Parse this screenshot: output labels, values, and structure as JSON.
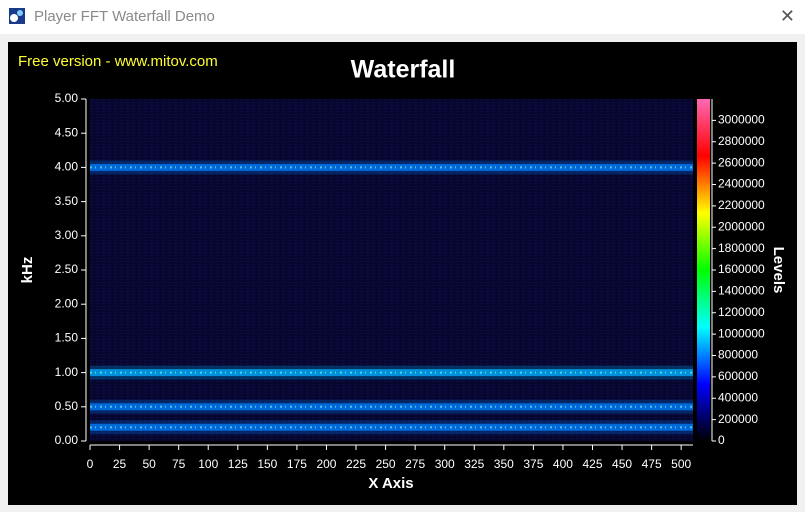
{
  "window": {
    "title": "Player FFT Waterfall Demo"
  },
  "chart_data": {
    "type": "waterfall",
    "title": "Waterfall",
    "watermark": "Free version - www.mitov.com",
    "x_label": "X Axis",
    "y_label": "kHz",
    "z_label": "Levels",
    "xlim": [
      0,
      510
    ],
    "xticks": [
      0,
      25,
      50,
      75,
      100,
      125,
      150,
      175,
      200,
      225,
      250,
      275,
      300,
      325,
      350,
      375,
      400,
      425,
      450,
      475,
      500
    ],
    "ylim": [
      0,
      5
    ],
    "yticks": [
      {
        "value": 0,
        "label": "0.00"
      },
      {
        "value": 0.5,
        "label": "0.50"
      },
      {
        "value": 1,
        "label": "1.00"
      },
      {
        "value": 1.5,
        "label": "1.50"
      },
      {
        "value": 2,
        "label": "2.00"
      },
      {
        "value": 2.5,
        "label": "2.50"
      },
      {
        "value": 3,
        "label": "3.00"
      },
      {
        "value": 3.5,
        "label": "3.50"
      },
      {
        "value": 4,
        "label": "4.00"
      },
      {
        "value": 4.5,
        "label": "4.50"
      },
      {
        "value": 5,
        "label": "5.00"
      }
    ],
    "zlim": [
      0,
      3200000
    ],
    "zticks": [
      0,
      200000,
      400000,
      600000,
      800000,
      1000000,
      1200000,
      1400000,
      1600000,
      1800000,
      2000000,
      2200000,
      2400000,
      2600000,
      2800000,
      3000000
    ],
    "colormap": [
      "#000000",
      "#0000ff",
      "#00ffff",
      "#00ff00",
      "#ffff00",
      "#ff0000",
      "#ff69b4"
    ],
    "bands": [
      {
        "freq": 0.2,
        "level": 800000
      },
      {
        "freq": 0.5,
        "level": 800000
      },
      {
        "freq": 1.0,
        "level": 900000
      },
      {
        "freq": 4.0,
        "level": 800000
      }
    ]
  }
}
